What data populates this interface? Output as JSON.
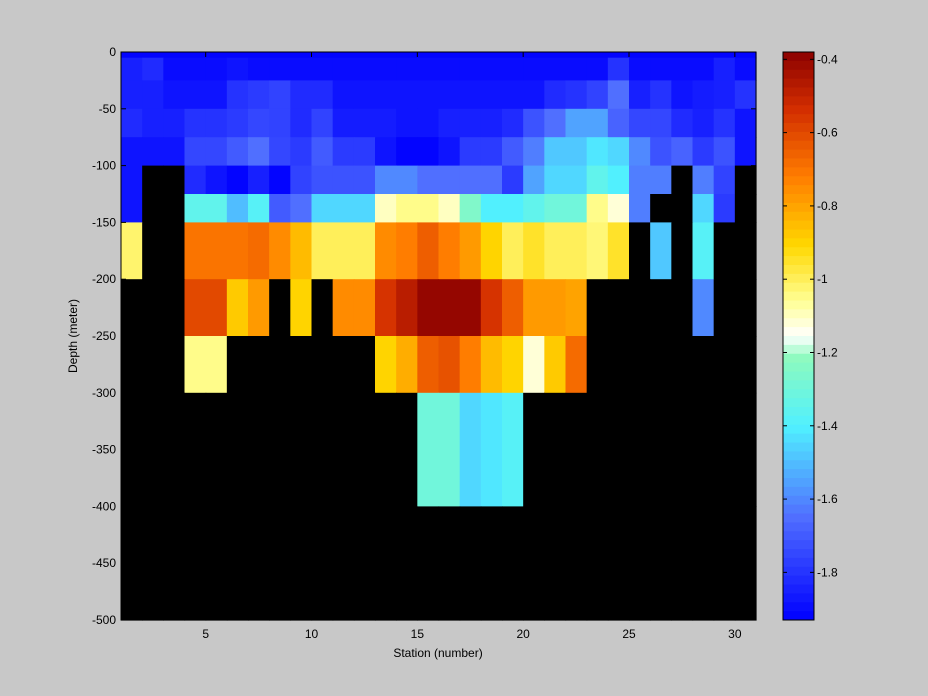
{
  "chart_data": {
    "type": "heatmap",
    "title": "",
    "xlabel": "Station (number)",
    "ylabel": "Depth (meter)",
    "xlim": [
      1,
      31
    ],
    "ylim": [
      -500,
      0
    ],
    "x_ticks": [
      5,
      10,
      15,
      20,
      25,
      30
    ],
    "y_ticks": [
      0,
      -50,
      -100,
      -150,
      -200,
      -250,
      -300,
      -350,
      -400,
      -450,
      -500
    ],
    "no_data_color": "#000000",
    "colorbar": {
      "range": [
        -1.93,
        -0.38
      ],
      "ticks": [
        -0.4,
        -0.6,
        -0.8,
        -1,
        -1.2,
        -1.4,
        -1.6,
        -1.8
      ],
      "colormap": "jet-white-centered"
    },
    "x_bins": [
      1.0,
      2.0,
      3.0,
      4.0,
      5.0,
      6.0,
      7.0,
      8.0,
      9.0,
      10.0,
      11.0,
      12.0,
      13.0,
      14.0,
      15.0,
      16.0,
      17.0,
      18.0,
      19.0,
      20.0,
      21.0,
      22.0,
      23.0,
      24.0,
      25.0,
      26.0,
      27.0,
      28.0,
      29.0,
      30.0,
      31.0
    ],
    "depth_bins": [
      0,
      -5,
      -25,
      -50,
      -75,
      -100,
      -125,
      -150,
      -200,
      -250,
      -300,
      -400,
      -500
    ],
    "rows": [
      [
        -1.92,
        -1.92,
        -1.92,
        -1.92,
        -1.92,
        -1.92,
        -1.92,
        -1.92,
        -1.92,
        -1.92,
        -1.92,
        -1.92,
        -1.92,
        -1.92,
        -1.92,
        -1.92,
        -1.92,
        -1.92,
        -1.92,
        -1.92,
        -1.92,
        -1.92,
        -1.92,
        -1.92,
        -1.92,
        -1.92,
        -1.92,
        -1.92,
        -1.92,
        -1.92
      ],
      [
        -1.85,
        -1.82,
        -1.9,
        -1.9,
        -1.9,
        -1.88,
        -1.9,
        -1.9,
        -1.9,
        -1.9,
        -1.9,
        -1.9,
        -1.9,
        -1.9,
        -1.9,
        -1.9,
        -1.9,
        -1.9,
        -1.9,
        -1.9,
        -1.9,
        -1.9,
        -1.9,
        -1.8,
        -1.9,
        -1.9,
        -1.9,
        -1.9,
        -1.85,
        -1.9
      ],
      [
        -1.85,
        -1.85,
        -1.88,
        -1.88,
        -1.88,
        -1.8,
        -1.78,
        -1.76,
        -1.82,
        -1.82,
        -1.88,
        -1.88,
        -1.88,
        -1.88,
        -1.88,
        -1.88,
        -1.88,
        -1.88,
        -1.88,
        -1.88,
        -1.82,
        -1.8,
        -1.76,
        -1.65,
        -1.85,
        -1.8,
        -1.88,
        -1.86,
        -1.85,
        -1.8
      ],
      [
        -1.82,
        -1.85,
        -1.85,
        -1.8,
        -1.8,
        -1.78,
        -1.75,
        -1.76,
        -1.82,
        -1.76,
        -1.86,
        -1.86,
        -1.86,
        -1.88,
        -1.88,
        -1.85,
        -1.85,
        -1.85,
        -1.82,
        -1.72,
        -1.65,
        -1.55,
        -1.55,
        -1.68,
        -1.75,
        -1.75,
        -1.82,
        -1.85,
        -1.8,
        -1.88
      ],
      [
        -1.88,
        -1.88,
        -1.88,
        -1.75,
        -1.75,
        -1.7,
        -1.65,
        -1.75,
        -1.78,
        -1.7,
        -1.78,
        -1.78,
        -1.88,
        -1.92,
        -1.92,
        -1.88,
        -1.78,
        -1.78,
        -1.7,
        -1.62,
        -1.48,
        -1.48,
        -1.42,
        -1.45,
        -1.6,
        -1.72,
        -1.68,
        -1.78,
        -1.72,
        -1.88
      ],
      [
        -1.88,
        null,
        null,
        -1.82,
        -1.88,
        -1.92,
        -1.85,
        -1.92,
        -1.76,
        -1.72,
        -1.72,
        -1.72,
        -1.6,
        -1.6,
        -1.65,
        -1.65,
        -1.65,
        -1.65,
        -1.78,
        -1.55,
        -1.45,
        -1.45,
        -1.35,
        -1.4,
        -1.62,
        -1.62,
        null,
        -1.62,
        -1.76,
        null
      ],
      [
        -1.88,
        null,
        null,
        -1.35,
        -1.35,
        -1.5,
        -1.38,
        -1.7,
        -1.65,
        -1.45,
        -1.45,
        -1.45,
        -1.1,
        -1.05,
        -1.05,
        -1.1,
        -1.25,
        -1.4,
        -1.4,
        -1.35,
        -1.3,
        -1.3,
        -1.05,
        -1.12,
        -1.62,
        null,
        null,
        -1.45,
        -1.78,
        null
      ],
      [
        -1.02,
        null,
        null,
        -0.7,
        -0.7,
        -0.7,
        -0.68,
        -0.75,
        -0.85,
        -1.0,
        -1.0,
        -1.0,
        -0.75,
        -0.72,
        -0.65,
        -0.72,
        -0.78,
        -0.9,
        -1.0,
        -0.95,
        -1.0,
        -1.0,
        -1.03,
        -0.95,
        null,
        -1.48,
        null,
        -1.38,
        null,
        null
      ],
      [
        null,
        null,
        null,
        -0.6,
        -0.6,
        -0.88,
        -0.78,
        null,
        -0.9,
        null,
        -0.75,
        -0.75,
        -0.55,
        -0.48,
        -0.4,
        -0.4,
        -0.4,
        -0.55,
        -0.65,
        -0.78,
        -0.78,
        -0.8,
        null,
        null,
        null,
        null,
        null,
        -1.6,
        null,
        null
      ],
      [
        null,
        null,
        null,
        -1.05,
        -1.05,
        null,
        null,
        null,
        null,
        null,
        null,
        null,
        -0.9,
        -0.82,
        -0.65,
        -0.62,
        -0.72,
        -0.85,
        -0.9,
        -1.12,
        -0.88,
        -0.68,
        null,
        null,
        null,
        null,
        null,
        null,
        null,
        null
      ],
      [
        null,
        null,
        null,
        null,
        null,
        null,
        null,
        null,
        null,
        null,
        null,
        null,
        null,
        null,
        -1.3,
        -1.3,
        -1.45,
        -1.42,
        -1.38,
        null,
        null,
        null,
        null,
        null,
        null,
        null,
        null,
        null,
        null,
        null
      ],
      [
        null,
        null,
        null,
        null,
        null,
        null,
        null,
        null,
        null,
        null,
        null,
        null,
        null,
        null,
        null,
        null,
        null,
        null,
        null,
        null,
        null,
        null,
        null,
        null,
        null,
        null,
        null,
        null,
        null,
        null
      ]
    ]
  }
}
